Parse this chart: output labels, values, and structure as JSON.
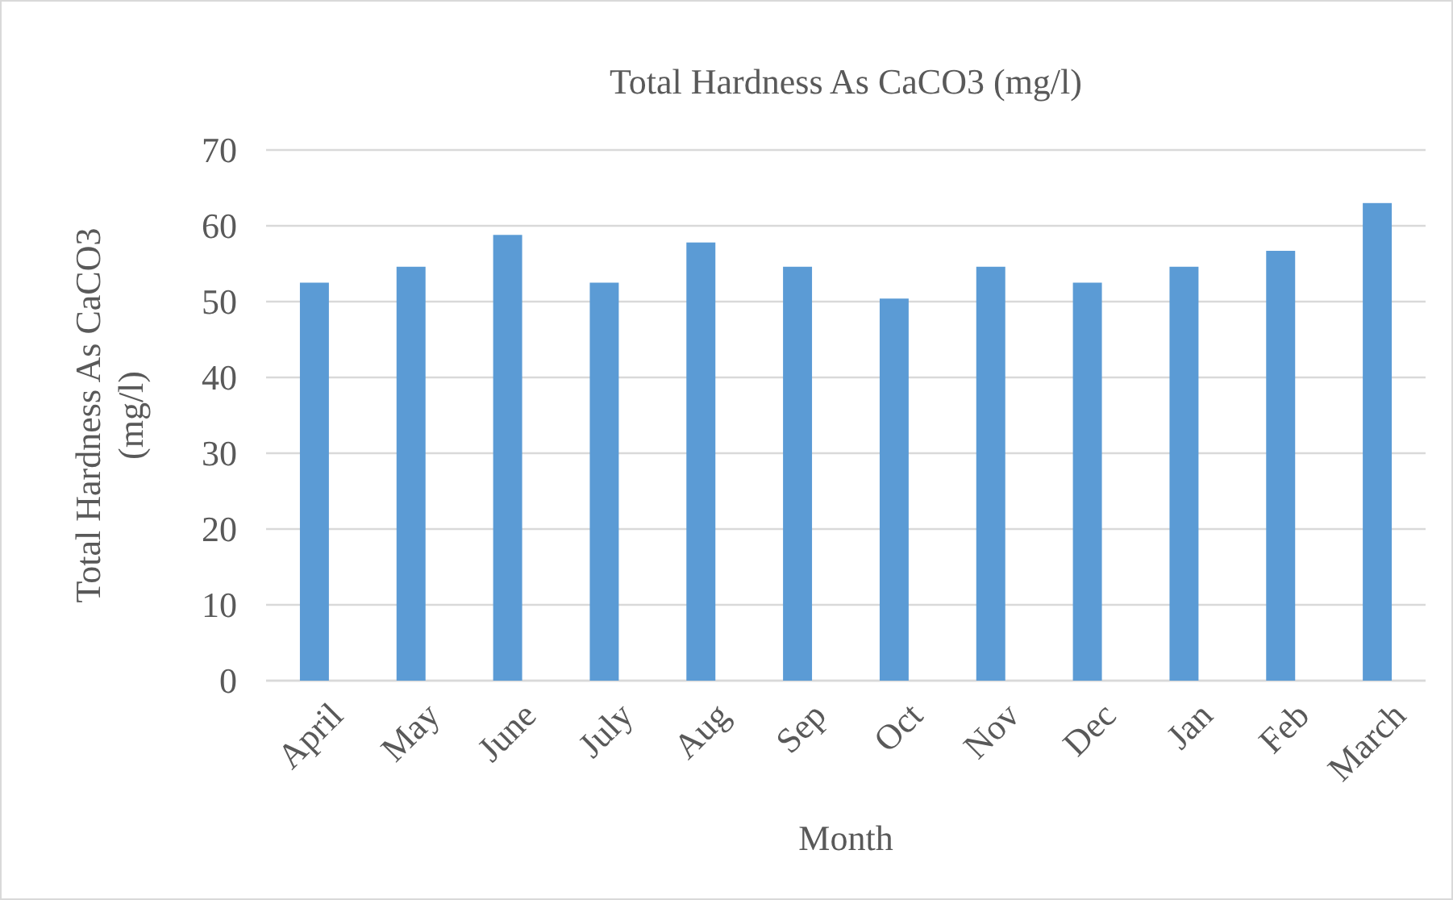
{
  "chart_data": {
    "type": "bar",
    "title": "Total Hardness As CaCO3 (mg/l)",
    "xlabel": "Month",
    "ylabel": "Total Hardness As CaCO3 (mg/l)",
    "categories": [
      "April",
      "May",
      "June",
      "July",
      "Aug",
      "Sep",
      "Oct",
      "Nov",
      "Dec",
      "Jan",
      "Feb",
      "March"
    ],
    "values": [
      52.5,
      54.6,
      58.8,
      52.5,
      57.8,
      54.6,
      50.4,
      54.6,
      52.5,
      54.6,
      56.7,
      63.0
    ],
    "color": "#5b9bd5",
    "ylim": [
      0,
      70
    ],
    "yticks": [
      0,
      10,
      20,
      30,
      40,
      50,
      60,
      70
    ],
    "grid": "y"
  }
}
